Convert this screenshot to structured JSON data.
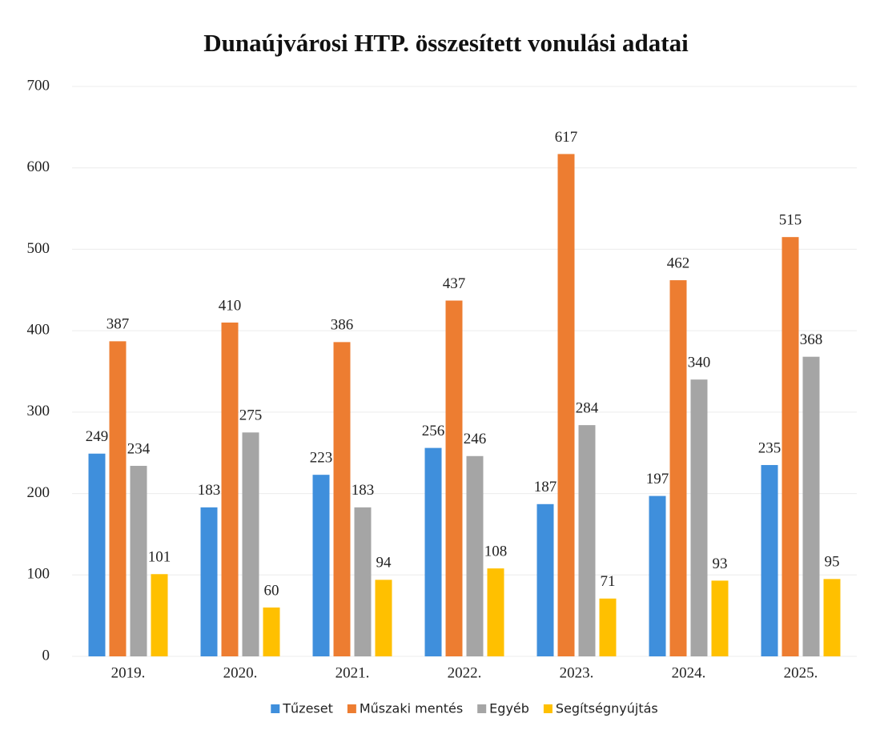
{
  "chart_data": {
    "type": "bar",
    "title": "Dunaújvárosi HTP. összesített vonulási adatai",
    "categories": [
      "2019.",
      "2020.",
      "2021.",
      "2022.",
      "2023.",
      "2024.",
      "2025."
    ],
    "series": [
      {
        "name": "Tűzeset",
        "color": "#3f8fdc",
        "values": [
          249,
          183,
          223,
          256,
          187,
          197,
          235
        ]
      },
      {
        "name": "Műszaki mentés",
        "color": "#ed7d31",
        "values": [
          387,
          410,
          386,
          437,
          617,
          462,
          515
        ]
      },
      {
        "name": "Egyéb",
        "color": "#a5a5a5",
        "values": [
          234,
          275,
          183,
          246,
          284,
          340,
          368
        ]
      },
      {
        "name": "Segítségnyújtás",
        "color": "#ffc000",
        "values": [
          101,
          60,
          94,
          108,
          71,
          93,
          95
        ]
      }
    ],
    "ylim": [
      0,
      700
    ],
    "yticks": [
      0,
      100,
      200,
      300,
      400,
      500,
      600,
      700
    ],
    "grid": true,
    "legend": "bottom"
  }
}
